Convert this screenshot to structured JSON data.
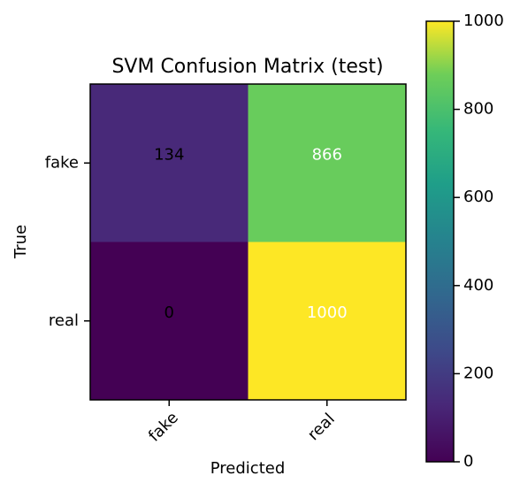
{
  "chart_data": {
    "type": "heatmap",
    "title": "SVM Confusion Matrix (test)",
    "xlabel": "Predicted",
    "ylabel": "True",
    "x_categories": [
      "fake",
      "real"
    ],
    "y_categories": [
      "fake",
      "real"
    ],
    "values": [
      [
        134,
        866
      ],
      [
        0,
        1000
      ]
    ],
    "colormap": "viridis",
    "color_range": [
      0,
      1000
    ],
    "colorbar_ticks": [
      0,
      200,
      400,
      600,
      800,
      1000
    ],
    "grid": false,
    "annotation_colors": {
      "dark_cell_text": "#000000",
      "light_cell_text": "#ffffff"
    }
  }
}
